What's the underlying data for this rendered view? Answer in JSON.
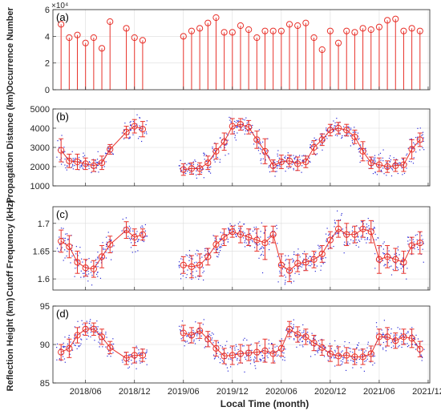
{
  "colors": {
    "line": "#e8312a",
    "scatter": "#2b2bd6",
    "axis": "#262626",
    "grid": "#dcdcdc"
  },
  "chart_data": {
    "type": "line",
    "xlabel": "Local Time (month)",
    "x_tick_labels": [
      "2018/06",
      "2018/12",
      "2019/06",
      "2019/12",
      "2020/06",
      "2020/12",
      "2021/06",
      "2021/12"
    ],
    "x_tick_months": [
      "2018-06",
      "2018-12",
      "2019-06",
      "2019-12",
      "2020-06",
      "2020-12",
      "2021-06",
      "2021-12"
    ],
    "xlim": [
      "2018-02",
      "2021-12"
    ],
    "grid": true,
    "months_a": [
      "2018-03",
      "2018-04",
      "2018-05",
      "2018-06",
      "2018-07",
      "2018-08",
      "2018-09",
      "2018-11",
      "2018-12",
      "2019-01",
      "2019-06",
      "2019-07",
      "2019-08",
      "2019-09",
      "2019-10",
      "2019-11",
      "2019-12",
      "2020-01",
      "2020-02",
      "2020-03",
      "2020-04",
      "2020-05",
      "2020-06",
      "2020-07",
      "2020-08",
      "2020-09",
      "2020-10",
      "2020-11",
      "2020-12",
      "2021-01",
      "2021-02",
      "2021-03",
      "2021-04",
      "2021-05",
      "2021-06",
      "2021-07",
      "2021-08",
      "2021-09",
      "2021-10",
      "2021-11"
    ],
    "months": [
      "2018-03",
      "2018-04",
      "2018-05",
      "2018-06",
      "2018-07",
      "2018-08",
      "2018-09",
      "2018-11",
      "2018-12",
      "2019-01",
      "2019-06",
      "2019-07",
      "2019-08",
      "2019-09",
      "2019-10",
      "2019-11",
      "2019-12",
      "2020-01",
      "2020-02",
      "2020-03",
      "2020-04",
      "2020-05",
      "2020-06",
      "2020-07",
      "2020-08",
      "2020-09",
      "2020-10",
      "2020-11",
      "2020-12",
      "2021-01",
      "2021-02",
      "2021-03",
      "2021-04",
      "2021-05",
      "2021-06",
      "2021-07",
      "2021-08",
      "2021-09",
      "2021-10",
      "2021-11"
    ],
    "panels": [
      {
        "id": "a",
        "label": "(a)",
        "kind": "stem",
        "ylabel": "Occurrence Number",
        "exponent_label": "×10⁴",
        "ylim": [
          0,
          60000
        ],
        "yticks": [
          0,
          20000,
          40000,
          60000
        ],
        "ytick_labels": [
          "0",
          "2",
          "4",
          "6"
        ],
        "values": [
          49000,
          39000,
          41000,
          35000,
          39000,
          31000,
          51000,
          46000,
          39000,
          37000,
          40000,
          44000,
          46000,
          50000,
          54000,
          43000,
          43000,
          48000,
          45000,
          39000,
          44000,
          44000,
          44000,
          49000,
          48000,
          50000,
          39000,
          30000,
          44000,
          35000,
          44000,
          43000,
          46000,
          45000,
          47000,
          52000,
          53000,
          44000,
          46000,
          44000
        ]
      },
      {
        "id": "b",
        "label": "(b)",
        "kind": "line",
        "ylabel": "Propagation Distance (km)",
        "ylim": [
          1000,
          5000
        ],
        "yticks": [
          1000,
          2000,
          3000,
          4000,
          5000
        ],
        "ytick_labels": [
          "1000",
          "2000",
          "3000",
          "4000",
          "5000"
        ],
        "mean": [
          2850,
          2300,
          2250,
          2150,
          2050,
          2200,
          2900,
          3800,
          4100,
          3950,
          1850,
          1900,
          1900,
          2200,
          2800,
          3300,
          4100,
          4200,
          4050,
          3400,
          2800,
          2050,
          2250,
          2300,
          2150,
          2250,
          3000,
          3400,
          3900,
          4000,
          3900,
          3550,
          2800,
          2200,
          2100,
          2000,
          2050,
          2100,
          2900,
          3400
        ],
        "err": [
          600,
          350,
          400,
          300,
          300,
          350,
          250,
          300,
          350,
          400,
          300,
          300,
          300,
          350,
          400,
          450,
          400,
          300,
          350,
          450,
          650,
          300,
          350,
          300,
          350,
          300,
          350,
          300,
          300,
          300,
          300,
          350,
          500,
          300,
          350,
          300,
          300,
          350,
          500,
          350
        ]
      },
      {
        "id": "c",
        "label": "(c)",
        "kind": "line",
        "ylabel": "Cutoff Frequency (kHz)",
        "ylim": [
          1.58,
          1.73
        ],
        "yticks": [
          1.6,
          1.65,
          1.7
        ],
        "ytick_labels": [
          "1.6",
          "1.65",
          "1.7"
        ],
        "mean": [
          1.668,
          1.658,
          1.63,
          1.62,
          1.618,
          1.64,
          1.662,
          1.688,
          1.675,
          1.68,
          1.625,
          1.622,
          1.625,
          1.64,
          1.662,
          1.675,
          1.685,
          1.68,
          1.675,
          1.67,
          1.665,
          1.68,
          1.625,
          1.615,
          1.628,
          1.63,
          1.635,
          1.645,
          1.67,
          1.69,
          1.68,
          1.68,
          1.69,
          1.685,
          1.635,
          1.64,
          1.635,
          1.63,
          1.66,
          1.665
        ],
        "err": [
          0.02,
          0.02,
          0.02,
          0.015,
          0.015,
          0.02,
          0.015,
          0.015,
          0.015,
          0.01,
          0.015,
          0.02,
          0.02,
          0.015,
          0.015,
          0.015,
          0.01,
          0.015,
          0.015,
          0.02,
          0.03,
          0.015,
          0.02,
          0.02,
          0.015,
          0.015,
          0.015,
          0.015,
          0.015,
          0.015,
          0.02,
          0.015,
          0.015,
          0.02,
          0.025,
          0.02,
          0.02,
          0.02,
          0.015,
          0.02
        ]
      },
      {
        "id": "d",
        "label": "(d)",
        "kind": "line",
        "ylabel": "Reflection Height (km)",
        "ylim": [
          85,
          95
        ],
        "yticks": [
          85,
          90,
          95
        ],
        "ytick_labels": [
          "85",
          "90",
          "95"
        ],
        "mean": [
          89.0,
          89.5,
          91.2,
          92.0,
          92.0,
          91.0,
          89.6,
          88.2,
          88.6,
          88.6,
          91.5,
          91.2,
          91.8,
          90.7,
          89.5,
          88.5,
          88.6,
          88.8,
          88.9,
          89.0,
          89.2,
          88.8,
          89.5,
          92.0,
          91.3,
          91.0,
          90.2,
          89.6,
          88.8,
          88.5,
          88.6,
          88.4,
          88.4,
          88.8,
          91.0,
          91.0,
          90.5,
          91.0,
          90.8,
          89.4
        ],
        "err": [
          1.0,
          1.2,
          1.0,
          0.8,
          0.8,
          1.0,
          0.8,
          0.8,
          1.0,
          0.8,
          1.0,
          1.0,
          1.0,
          1.0,
          1.0,
          1.0,
          1.2,
          1.2,
          1.0,
          1.2,
          1.5,
          1.2,
          1.0,
          1.0,
          1.0,
          1.0,
          1.0,
          1.0,
          1.0,
          1.2,
          1.0,
          1.0,
          1.0,
          1.0,
          1.0,
          1.2,
          1.0,
          1.0,
          1.2,
          1.0
        ]
      }
    ]
  }
}
